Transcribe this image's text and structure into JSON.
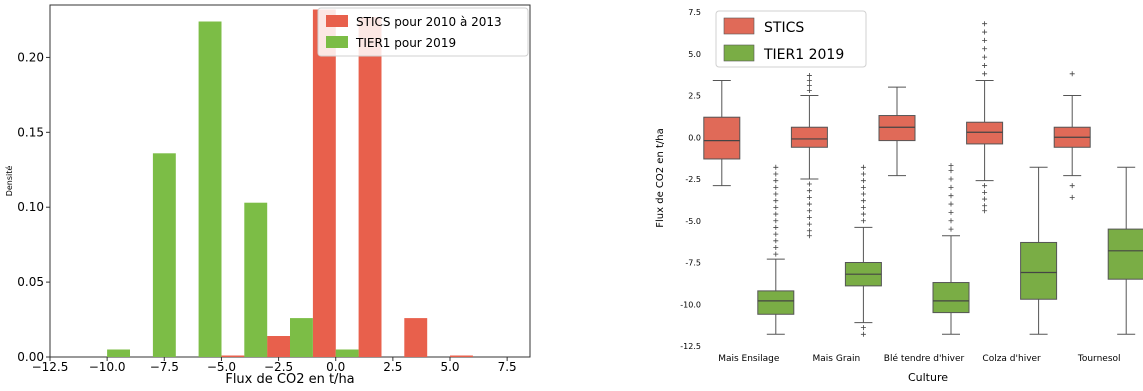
{
  "chart_data": [
    {
      "type": "bar",
      "title": "",
      "xlabel": "Flux de CO2 en t/ha",
      "ylabel": "Densité",
      "xlim": [
        -12.5,
        8.5
      ],
      "ylim": [
        0,
        0.235
      ],
      "xticks": [
        "−12.5",
        "−10.0",
        "−7.5",
        "−5.0",
        "−2.5",
        "0.0",
        "2.5",
        "5.0",
        "7.5"
      ],
      "xtick_values": [
        -12.5,
        -10,
        -7.5,
        -5,
        -2.5,
        0,
        2.5,
        5,
        7.5
      ],
      "yticks": [
        "0.00",
        "0.05",
        "0.10",
        "0.15",
        "0.20"
      ],
      "ytick_values": [
        0,
        0.05,
        0.1,
        0.15,
        0.2
      ],
      "bin_edges": [
        -10,
        -8,
        -6,
        -4,
        -2,
        0,
        2,
        4
      ],
      "grid": false,
      "legend_position": "top-right",
      "series": [
        {
          "name": "STICS pour 2010 à 2013",
          "color": "#e8604c",
          "offset": "right",
          "values": [
            0,
            0,
            0.001,
            0.014,
            0.232,
            0.227,
            0.026,
            0.001
          ]
        },
        {
          "name": "TIER1 pour 2019",
          "color": "#7cbd46",
          "offset": "left",
          "values": [
            0.005,
            0.136,
            0.224,
            0.103,
            0.026,
            0.005,
            0,
            0
          ]
        }
      ]
    },
    {
      "type": "box",
      "title": "",
      "xlabel": "Culture",
      "ylabel": "Flux de CO2 en t/ha",
      "ylim": [
        -12.5,
        7.5
      ],
      "yticks": [
        "7.5",
        "5.0",
        "2.5",
        "0.0",
        "-2.5",
        "-5.0",
        "-7.5",
        "-10.0",
        "-12.5"
      ],
      "ytick_values": [
        7.5,
        5,
        2.5,
        0,
        -2.5,
        -5,
        -7.5,
        -10,
        -12.5
      ],
      "categories": [
        "Mais Ensilage",
        "Mais Grain",
        "Blé tendre d'hiver",
        "Colza d'hiver",
        "Tournesol"
      ],
      "legend_position": "top-left",
      "series": [
        {
          "name": "STICS",
          "color": "#e06a58",
          "boxes": [
            {
              "whislo": -2.9,
              "q1": -1.3,
              "med": -0.2,
              "q3": 1.2,
              "whishi": 3.4,
              "fliers_lo": [],
              "fliers_hi": []
            },
            {
              "whislo": -2.5,
              "q1": -0.6,
              "med": -0.1,
              "q3": 0.6,
              "whishi": 2.5,
              "fliers_lo": [
                -2.8,
                -3.2,
                -3.6,
                -4.0,
                -4.4,
                -4.8,
                -5.2,
                -5.6,
                -5.9
              ],
              "fliers_hi": [
                2.8,
                3.1,
                3.4,
                3.7
              ]
            },
            {
              "whislo": -2.3,
              "q1": -0.2,
              "med": 0.6,
              "q3": 1.3,
              "whishi": 3.0,
              "fliers_lo": [],
              "fliers_hi": []
            },
            {
              "whislo": -2.6,
              "q1": -0.4,
              "med": 0.3,
              "q3": 0.9,
              "whishi": 3.4,
              "fliers_lo": [
                -2.9,
                -3.3,
                -3.7,
                -4.1,
                -4.4
              ],
              "fliers_hi": [
                3.8,
                4.3,
                4.8,
                5.3,
                5.8,
                6.3,
                6.8
              ]
            },
            {
              "whislo": -2.3,
              "q1": -0.6,
              "med": 0.0,
              "q3": 0.6,
              "whishi": 2.5,
              "fliers_lo": [
                -2.9,
                -3.6
              ],
              "fliers_hi": [
                3.8
              ]
            }
          ]
        },
        {
          "name": "TIER1 2019",
          "color": "#7aad45",
          "boxes": [
            {
              "whislo": -11.8,
              "q1": -10.6,
              "med": -9.8,
              "q3": -9.2,
              "whishi": -7.3,
              "fliers_lo": [],
              "fliers_hi": [
                -7.0,
                -6.6,
                -6.2,
                -5.8,
                -5.4,
                -5.0,
                -4.6,
                -4.2,
                -3.8,
                -3.4,
                -3.0,
                -2.6,
                -2.2,
                -1.8
              ]
            },
            {
              "whislo": -11.1,
              "q1": -8.9,
              "med": -8.2,
              "q3": -7.5,
              "whishi": -5.4,
              "fliers_lo": [
                -11.4,
                -11.8
              ],
              "fliers_hi": [
                -5.0,
                -4.6,
                -4.2,
                -3.8,
                -3.4,
                -3.0,
                -2.6,
                -2.2,
                -1.8
              ]
            },
            {
              "whislo": -11.8,
              "q1": -10.5,
              "med": -9.8,
              "q3": -8.7,
              "whishi": -5.9,
              "fliers_lo": [],
              "fliers_hi": [
                -5.5,
                -5.0,
                -4.5,
                -4.0,
                -3.5,
                -3.0,
                -2.5,
                -2.0,
                -1.7
              ]
            },
            {
              "whislo": -11.8,
              "q1": -9.7,
              "med": -8.1,
              "q3": -6.3,
              "whishi": -1.8,
              "fliers_lo": [],
              "fliers_hi": []
            },
            {
              "whislo": -11.8,
              "q1": -8.5,
              "med": -6.8,
              "q3": -5.5,
              "whishi": -1.8,
              "fliers_lo": [],
              "fliers_hi": []
            }
          ]
        }
      ]
    }
  ]
}
